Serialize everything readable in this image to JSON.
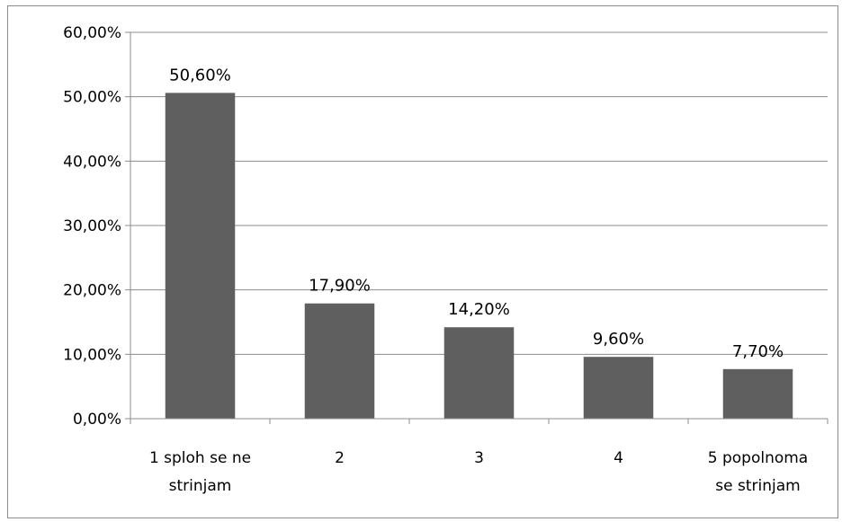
{
  "chart_data": {
    "type": "bar",
    "title": "",
    "xlabel": "",
    "ylabel": "",
    "categories": [
      [
        "1 sploh se ne",
        "strinjam"
      ],
      [
        "2"
      ],
      [
        "3"
      ],
      [
        "4"
      ],
      [
        "5 popolnoma",
        "se strinjam"
      ]
    ],
    "values": [
      50.6,
      17.9,
      14.2,
      9.6,
      7.7
    ],
    "data_labels": [
      "50,60%",
      "17,90%",
      "14,20%",
      "9,60%",
      "7,70%"
    ],
    "y_ticks": [
      {
        "value": 0,
        "label": "0,00%"
      },
      {
        "value": 10,
        "label": "10,00%"
      },
      {
        "value": 20,
        "label": "20,00%"
      },
      {
        "value": 30,
        "label": "30,00%"
      },
      {
        "value": 40,
        "label": "40,00%"
      },
      {
        "value": 50,
        "label": "50,00%"
      },
      {
        "value": 60,
        "label": "60,00%"
      }
    ],
    "ylim": [
      0,
      60
    ],
    "grid": true,
    "legend": "none",
    "colors": {
      "bar": "#5f5f5f",
      "grid": "#8c8c8c",
      "axis": "#8c8c8c",
      "border": "#8c8c8c"
    }
  }
}
